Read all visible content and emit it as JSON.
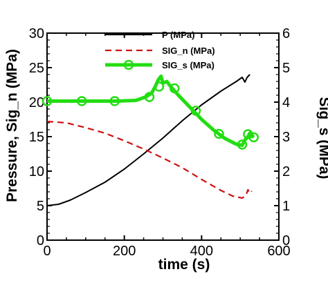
{
  "chart_data": {
    "type": "line",
    "xlabel": "time (s)",
    "ylabel_left": "Pressure, Sig_n (MPa)",
    "ylabel_right": "Sig_s (MPa)",
    "xlim": [
      0,
      600
    ],
    "ylim_left": [
      0,
      30
    ],
    "ylim_right": [
      0,
      6
    ],
    "xticks": [
      0,
      200,
      400,
      600
    ],
    "xtick_labels": [
      "0",
      "200",
      "400",
      "600"
    ],
    "yticks_left": [
      0,
      5,
      10,
      15,
      20,
      25,
      30
    ],
    "ytick_labels_left": [
      "0",
      "5",
      "10",
      "15",
      "20",
      "25",
      "30"
    ],
    "yticks_right": [
      0,
      1,
      2,
      3,
      4,
      5,
      6
    ],
    "ytick_labels_right": [
      "0",
      "1",
      "2",
      "3",
      "4",
      "5",
      "6"
    ],
    "grid": false,
    "legend_position": "top-center",
    "series": [
      {
        "name": "P (MPa)",
        "axis": "left",
        "color": "#000000",
        "style": "solid",
        "marker": "none",
        "points": [
          [
            0,
            5.0
          ],
          [
            30,
            5.2
          ],
          [
            60,
            5.8
          ],
          [
            100,
            6.9
          ],
          [
            150,
            8.4
          ],
          [
            200,
            10.3
          ],
          [
            250,
            12.5
          ],
          [
            300,
            14.8
          ],
          [
            350,
            17.3
          ],
          [
            400,
            19.6
          ],
          [
            450,
            21.6
          ],
          [
            490,
            23.0
          ],
          [
            505,
            23.6
          ],
          [
            512,
            22.9
          ],
          [
            518,
            23.6
          ],
          [
            525,
            24.0
          ]
        ]
      },
      {
        "name": "SIG_n (MPa)",
        "axis": "left",
        "color": "#cc1111",
        "style": "dashed",
        "marker": "none",
        "points": [
          [
            0,
            17.2
          ],
          [
            50,
            17.0
          ],
          [
            100,
            16.3
          ],
          [
            150,
            15.5
          ],
          [
            200,
            14.4
          ],
          [
            250,
            13.2
          ],
          [
            300,
            11.9
          ],
          [
            350,
            10.5
          ],
          [
            400,
            8.8
          ],
          [
            450,
            7.2
          ],
          [
            480,
            6.4
          ],
          [
            505,
            6.1
          ],
          [
            515,
            6.5
          ],
          [
            520,
            7.3
          ],
          [
            525,
            6.8
          ],
          [
            530,
            7.1
          ]
        ]
      },
      {
        "name": "SIG_s (MPa)",
        "axis": "right",
        "color": "#22dd11",
        "style": "thick-solid",
        "marker": "circle",
        "points": [
          [
            0,
            4.03
          ],
          [
            60,
            4.03
          ],
          [
            120,
            4.03
          ],
          [
            180,
            4.03
          ],
          [
            230,
            4.05
          ],
          [
            255,
            4.15
          ],
          [
            270,
            4.25
          ],
          [
            280,
            4.45
          ],
          [
            288,
            4.65
          ],
          [
            295,
            4.75
          ],
          [
            300,
            4.55
          ],
          [
            310,
            4.6
          ],
          [
            320,
            4.45
          ],
          [
            340,
            4.2
          ],
          [
            370,
            3.85
          ],
          [
            400,
            3.5
          ],
          [
            430,
            3.2
          ],
          [
            460,
            2.95
          ],
          [
            490,
            2.78
          ],
          [
            505,
            2.75
          ],
          [
            512,
            2.9
          ],
          [
            520,
            3.0
          ],
          [
            525,
            3.1
          ],
          [
            535,
            2.98
          ]
        ],
        "marker_points": [
          [
            0,
            4.03
          ],
          [
            90,
            4.03
          ],
          [
            175,
            4.03
          ],
          [
            265,
            4.15
          ],
          [
            290,
            4.45
          ],
          [
            330,
            4.4
          ],
          [
            385,
            3.75
          ],
          [
            445,
            3.08
          ],
          [
            505,
            2.77
          ],
          [
            520,
            3.07
          ],
          [
            535,
            2.98
          ]
        ]
      }
    ]
  }
}
